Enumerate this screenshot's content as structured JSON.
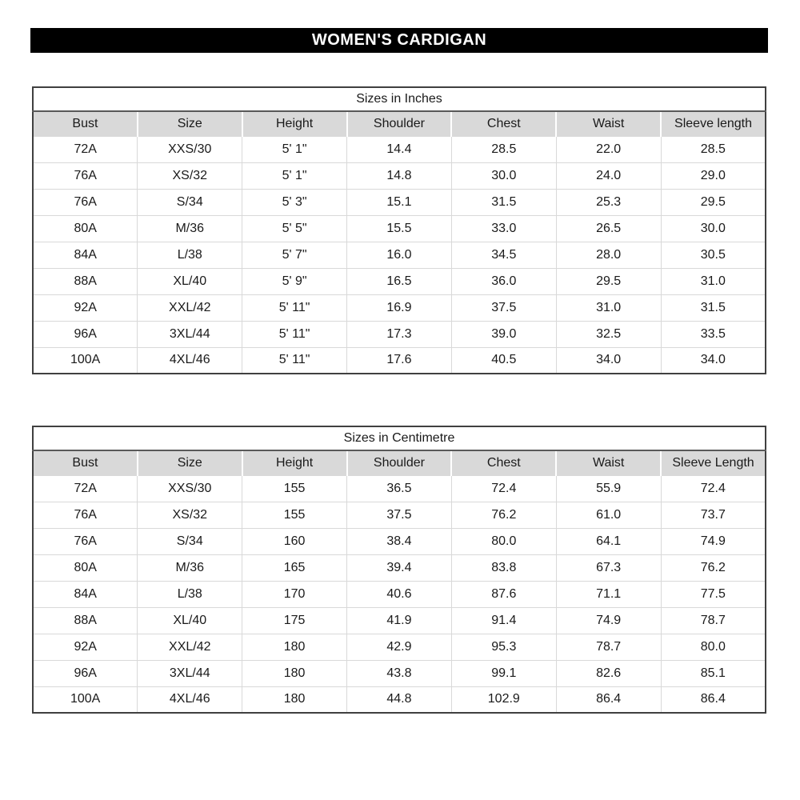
{
  "banner": {
    "title": "WOMEN'S CARDIGAN",
    "bg_color": "#000000",
    "text_color": "#ffffff"
  },
  "colors": {
    "header_bg": "#d9d9d9",
    "grid_line": "#d9d9d9",
    "outer_border": "#404040",
    "title_divider": "#595959"
  },
  "tables": [
    {
      "title": "Sizes in Inches",
      "headers": [
        "Bust",
        "Size",
        "Height",
        "Shoulder",
        "Chest",
        "Waist",
        "Sleeve length"
      ],
      "rows": [
        [
          "72A",
          "XXS/30",
          "5' 1\"",
          "14.4",
          "28.5",
          "22.0",
          "28.5"
        ],
        [
          "76A",
          "XS/32",
          "5' 1\"",
          "14.8",
          "30.0",
          "24.0",
          "29.0"
        ],
        [
          "76A",
          "S/34",
          "5' 3\"",
          "15.1",
          "31.5",
          "25.3",
          "29.5"
        ],
        [
          "80A",
          "M/36",
          "5' 5\"",
          "15.5",
          "33.0",
          "26.5",
          "30.0"
        ],
        [
          "84A",
          "L/38",
          "5' 7\"",
          "16.0",
          "34.5",
          "28.0",
          "30.5"
        ],
        [
          "88A",
          "XL/40",
          "5' 9\"",
          "16.5",
          "36.0",
          "29.5",
          "31.0"
        ],
        [
          "92A",
          "XXL/42",
          "5' 11\"",
          "16.9",
          "37.5",
          "31.0",
          "31.5"
        ],
        [
          "96A",
          "3XL/44",
          "5' 11\"",
          "17.3",
          "39.0",
          "32.5",
          "33.5"
        ],
        [
          "100A",
          "4XL/46",
          "5' 11\"",
          "17.6",
          "40.5",
          "34.0",
          "34.0"
        ]
      ]
    },
    {
      "title": "Sizes in Centimetre",
      "headers": [
        "Bust",
        "Size",
        "Height",
        "Shoulder",
        "Chest",
        "Waist",
        "Sleeve Length"
      ],
      "rows": [
        [
          "72A",
          "XXS/30",
          "155",
          "36.5",
          "72.4",
          "55.9",
          "72.4"
        ],
        [
          "76A",
          "XS/32",
          "155",
          "37.5",
          "76.2",
          "61.0",
          "73.7"
        ],
        [
          "76A",
          "S/34",
          "160",
          "38.4",
          "80.0",
          "64.1",
          "74.9"
        ],
        [
          "80A",
          "M/36",
          "165",
          "39.4",
          "83.8",
          "67.3",
          "76.2"
        ],
        [
          "84A",
          "L/38",
          "170",
          "40.6",
          "87.6",
          "71.1",
          "77.5"
        ],
        [
          "88A",
          "XL/40",
          "175",
          "41.9",
          "91.4",
          "74.9",
          "78.7"
        ],
        [
          "92A",
          "XXL/42",
          "180",
          "42.9",
          "95.3",
          "78.7",
          "80.0"
        ],
        [
          "96A",
          "3XL/44",
          "180",
          "43.8",
          "99.1",
          "82.6",
          "85.1"
        ],
        [
          "100A",
          "4XL/46",
          "180",
          "44.8",
          "102.9",
          "86.4",
          "86.4"
        ]
      ]
    }
  ]
}
